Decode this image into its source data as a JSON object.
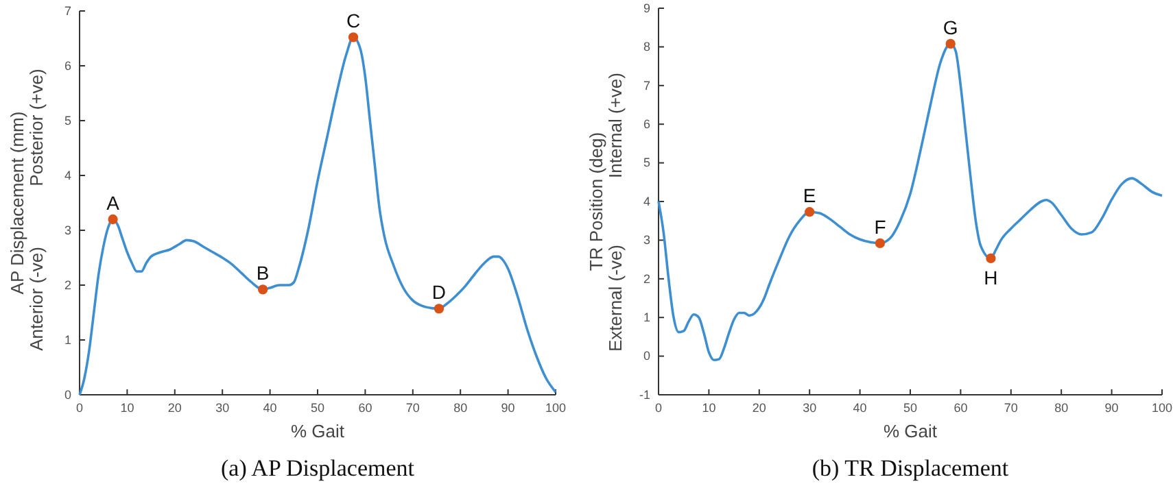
{
  "chart_data": [
    {
      "type": "line",
      "title": "(a) AP Displacement",
      "xlabel": "% Gait",
      "ylabel": "AP Displacement (mm)",
      "xlim": [
        0,
        100
      ],
      "xticks": [
        0,
        10,
        20,
        30,
        40,
        50,
        60,
        70,
        80,
        90,
        100
      ],
      "ylim": [
        0,
        7
      ],
      "yticks": [
        0,
        1,
        2,
        3,
        4,
        5,
        6,
        7
      ],
      "annotations": [
        "Anterior (-ve)",
        "Posterior (+ve)",
        {
          "text": "A",
          "x": 7,
          "y": 3.2
        },
        {
          "text": "B",
          "x": 38.5,
          "y": 1.92
        },
        {
          "text": "C",
          "x": 57.5,
          "y": 6.52
        },
        {
          "text": "D",
          "x": 75.5,
          "y": 1.57
        }
      ],
      "series": [
        {
          "type": "line",
          "color": "#3d8fd1",
          "x": [
            0,
            1,
            2,
            3,
            4,
            5,
            6,
            7,
            8,
            9,
            10,
            11,
            12,
            13,
            14,
            15,
            17,
            19,
            21,
            22.5,
            24,
            26,
            28,
            30,
            32,
            34,
            36,
            38.5,
            40,
            42,
            44,
            45,
            46,
            48,
            50,
            52,
            54,
            56,
            57.5,
            59,
            60,
            61,
            62,
            63,
            64,
            66,
            68,
            70,
            72,
            74,
            75.5,
            77,
            79,
            81,
            83,
            85,
            87,
            88,
            89,
            90,
            92,
            94,
            96,
            98,
            100
          ],
          "values": [
            0,
            0.3,
            0.8,
            1.5,
            2.2,
            2.7,
            3.05,
            3.2,
            3.1,
            2.85,
            2.6,
            2.4,
            2.25,
            2.25,
            2.4,
            2.52,
            2.6,
            2.65,
            2.75,
            2.82,
            2.8,
            2.7,
            2.6,
            2.5,
            2.38,
            2.22,
            2.06,
            1.92,
            1.95,
            2.0,
            2.0,
            2.05,
            2.3,
            3.0,
            3.9,
            4.7,
            5.5,
            6.2,
            6.52,
            6.3,
            5.8,
            5.0,
            4.2,
            3.4,
            2.9,
            2.35,
            1.95,
            1.72,
            1.62,
            1.58,
            1.57,
            1.65,
            1.8,
            1.98,
            2.2,
            2.4,
            2.52,
            2.52,
            2.45,
            2.3,
            1.8,
            1.2,
            0.7,
            0.3,
            0.05
          ]
        },
        {
          "type": "scatter",
          "color": "#d95319",
          "marker": "circle",
          "x": [
            7,
            38.5,
            57.5,
            75.5
          ],
          "values": [
            3.2,
            1.92,
            6.52,
            1.57
          ]
        }
      ]
    },
    {
      "type": "line",
      "title": "(b) TR Displacement",
      "xlabel": "% Gait",
      "ylabel": "TR Position (deg)",
      "xlim": [
        0,
        100
      ],
      "xticks": [
        0,
        10,
        20,
        30,
        40,
        50,
        60,
        70,
        80,
        90,
        100
      ],
      "ylim": [
        -1,
        9
      ],
      "yticks": [
        -1,
        0,
        1,
        2,
        3,
        4,
        5,
        6,
        7,
        8,
        9
      ],
      "annotations": [
        "External (-ve)",
        "Internal (+ve)",
        {
          "text": "E",
          "x": 30,
          "y": 3.73
        },
        {
          "text": "F",
          "x": 44,
          "y": 2.92
        },
        {
          "text": "G",
          "x": 58,
          "y": 8.08
        },
        {
          "text": "H",
          "x": 66,
          "y": 2.53
        }
      ],
      "series": [
        {
          "type": "line",
          "color": "#3d8fd1",
          "x": [
            0,
            1,
            2,
            3,
            4,
            5,
            6,
            7,
            8,
            9,
            10,
            11,
            12,
            13,
            14,
            15,
            16,
            17,
            18,
            19,
            20,
            21,
            22,
            24,
            26,
            28,
            30,
            32,
            34,
            36,
            38,
            40,
            42,
            44,
            46,
            48,
            50,
            52,
            54,
            56,
            58,
            59,
            60,
            61,
            62,
            63,
            64,
            66,
            67,
            68,
            70,
            72,
            74,
            76,
            77,
            78,
            80,
            82,
            84,
            86,
            88,
            90,
            92,
            94,
            96,
            98,
            100
          ],
          "values": [
            4.0,
            3.2,
            2.0,
            1.0,
            0.62,
            0.65,
            0.9,
            1.08,
            1.0,
            0.6,
            0.1,
            -0.1,
            -0.08,
            0.2,
            0.6,
            0.95,
            1.12,
            1.12,
            1.05,
            1.1,
            1.25,
            1.5,
            1.85,
            2.5,
            3.1,
            3.5,
            3.73,
            3.7,
            3.55,
            3.35,
            3.15,
            3.02,
            2.95,
            2.92,
            3.05,
            3.5,
            4.2,
            5.3,
            6.5,
            7.6,
            8.08,
            7.9,
            7.0,
            5.8,
            4.6,
            3.5,
            2.85,
            2.53,
            2.75,
            3.0,
            3.3,
            3.55,
            3.8,
            4.0,
            4.04,
            3.98,
            3.65,
            3.3,
            3.15,
            3.2,
            3.55,
            4.05,
            4.45,
            4.6,
            4.45,
            4.25,
            4.15
          ]
        },
        {
          "type": "scatter",
          "color": "#d95319",
          "marker": "circle",
          "x": [
            30,
            44,
            58,
            66
          ],
          "values": [
            3.73,
            2.92,
            8.08,
            2.53
          ]
        }
      ]
    }
  ]
}
